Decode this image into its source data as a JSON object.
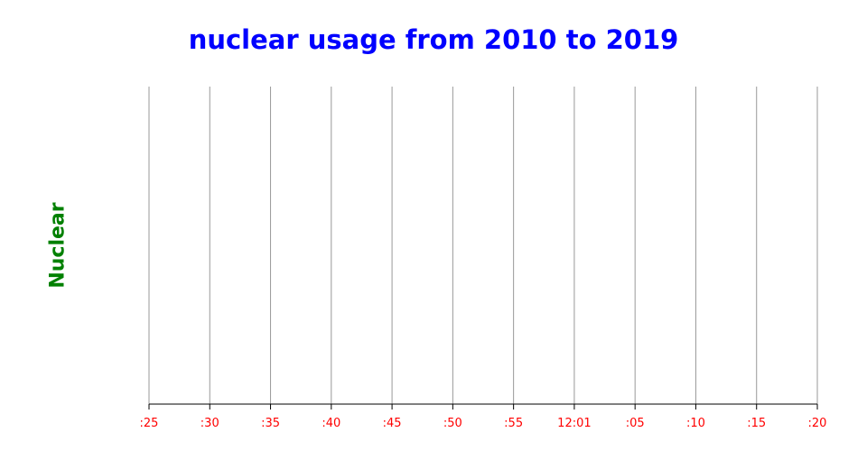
{
  "chart_data": {
    "type": "line",
    "title": "nuclear usage from 2010 to 2019",
    "ylabel": "Nuclear",
    "xlabel": "",
    "x_tick_labels": [
      ":25",
      ":30",
      ":35",
      ":40",
      ":45",
      ":50",
      ":55",
      "12:01",
      ":05",
      ":10",
      ":15",
      ":20"
    ],
    "series": [],
    "grid": {
      "vertical": true,
      "horizontal": false
    },
    "colors": {
      "title": "#0000ff",
      "ylabel": "#008000",
      "tick_labels": "#ff0000",
      "gridlines": "#999999",
      "axis": "#000000"
    }
  }
}
